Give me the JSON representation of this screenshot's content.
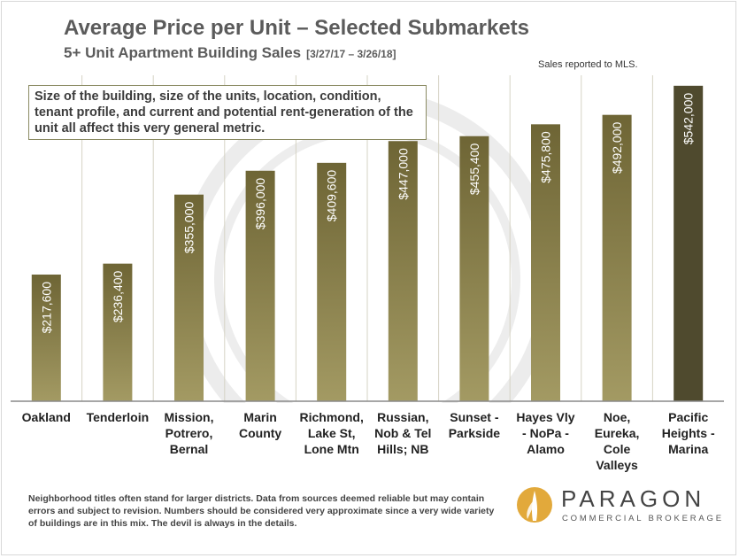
{
  "header": {
    "title": "Average Price per Unit – Selected Submarkets",
    "subtitle": "5+ Unit Apartment Building Sales",
    "date_range": "[3/27/17 – 3/26/18]",
    "source_note": "Sales reported to MLS."
  },
  "annotation": "Size of the building, size of the units, location, condition, tenant profile, and current and potential rent-generation of the unit all affect this very general metric.",
  "footer_note": "Neighborhood titles often stand for larger districts. Data from sources deemed reliable but may contain errors and subject to revision. Numbers should be considered very approximate since a very wide variety of buildings are in this mix. The devil is always in the details.",
  "logo": {
    "name": "PARAGON",
    "tagline": "COMMERCIAL BROKERAGE"
  },
  "colors": {
    "bar_light": "#a39a63",
    "bar_dark": "#6e6535",
    "bar_highlight": "#4f4a2e",
    "grid": "#d6d3c4",
    "axis": "#8a8a8a",
    "logo_gold": "#e2a93b"
  },
  "chart_data": {
    "type": "bar",
    "title": "Average Price per Unit – Selected Submarkets",
    "subtitle": "5+ Unit Apartment Building Sales [3/27/17 – 3/26/18]",
    "xlabel": "",
    "ylabel": "",
    "ylim": [
      0,
      560000
    ],
    "grid": true,
    "categories": [
      [
        "Oakland"
      ],
      [
        "Tenderloin"
      ],
      [
        "Mission,",
        "Potrero,",
        "Bernal"
      ],
      [
        "Marin",
        "County"
      ],
      [
        "Richmond,",
        "Lake St,",
        "Lone Mtn"
      ],
      [
        "Russian,",
        "Nob & Tel",
        "Hills; NB"
      ],
      [
        "Sunset -",
        "Parkside"
      ],
      [
        "Hayes Vly",
        "- NoPa -",
        "Alamo"
      ],
      [
        "Noe,",
        "Eureka,",
        "Cole",
        "Valleys"
      ],
      [
        "Pacific",
        "Heights -",
        "Marina"
      ]
    ],
    "values": [
      217600,
      236400,
      355000,
      396000,
      409600,
      447000,
      455400,
      475800,
      492000,
      542000
    ],
    "data_labels": [
      "$217,600",
      "$236,400",
      "$355,000",
      "$396,000",
      "$409,600",
      "$447,000",
      "$455,400",
      "$475,800",
      "$492,000",
      "$542,000"
    ],
    "highlight_index": 9
  }
}
